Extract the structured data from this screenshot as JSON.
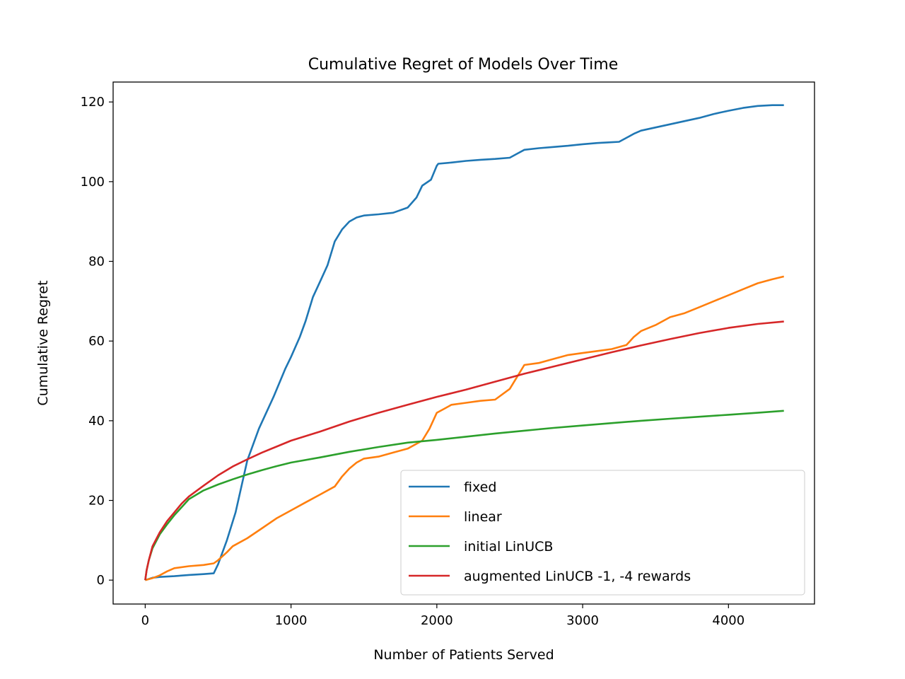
{
  "chart_data": {
    "type": "line",
    "title": "Cumulative Regret of Models Over Time",
    "xlabel": "Number of Patients Served",
    "ylabel": "Cumulative Regret",
    "xlim": [
      -220,
      4590
    ],
    "ylim": [
      -6,
      125
    ],
    "xticks": [
      0,
      1000,
      2000,
      3000,
      4000
    ],
    "yticks": [
      0,
      20,
      40,
      60,
      80,
      100,
      120
    ],
    "grid": false,
    "legend": "lower-right",
    "series": [
      {
        "name": "fixed",
        "color": "#1f77b4",
        "x": [
          0,
          50,
          100,
          200,
          300,
          400,
          470,
          500,
          560,
          620,
          700,
          780,
          880,
          960,
          1000,
          1060,
          1100,
          1150,
          1200,
          1250,
          1300,
          1350,
          1400,
          1450,
          1500,
          1600,
          1700,
          1800,
          1860,
          1900,
          1960,
          2000,
          2010,
          2100,
          2200,
          2300,
          2400,
          2500,
          2550,
          2600,
          2700,
          2800,
          2900,
          3000,
          3100,
          3200,
          3250,
          3300,
          3350,
          3400,
          3500,
          3600,
          3700,
          3800,
          3900,
          4000,
          4100,
          4200,
          4300,
          4380
        ],
        "y": [
          0,
          0.6,
          0.8,
          1.0,
          1.3,
          1.5,
          1.7,
          4,
          10,
          17,
          30,
          38,
          46,
          53,
          56,
          61,
          65,
          71,
          75,
          79,
          85,
          88,
          90,
          91,
          91.5,
          91.8,
          92.2,
          93.5,
          96,
          99,
          100.5,
          104,
          104.5,
          104.8,
          105.2,
          105.5,
          105.7,
          106,
          107,
          108,
          108.4,
          108.7,
          109,
          109.4,
          109.7,
          109.9,
          110,
          111,
          112,
          112.8,
          113.6,
          114.4,
          115.2,
          116,
          117,
          117.8,
          118.5,
          119,
          119.2,
          119.2
        ]
      },
      {
        "name": "linear",
        "color": "#ff7f0e",
        "x": [
          0,
          50,
          100,
          150,
          200,
          300,
          400,
          470,
          500,
          560,
          600,
          700,
          800,
          900,
          1000,
          1100,
          1200,
          1300,
          1350,
          1400,
          1450,
          1500,
          1600,
          1700,
          1800,
          1900,
          1950,
          2000,
          2050,
          2100,
          2200,
          2300,
          2400,
          2500,
          2550,
          2600,
          2700,
          2800,
          2900,
          3000,
          3100,
          3200,
          3300,
          3350,
          3400,
          3500,
          3600,
          3700,
          3800,
          3900,
          4000,
          4100,
          4200,
          4300,
          4380
        ],
        "y": [
          0,
          0.5,
          1.2,
          2.2,
          3,
          3.5,
          3.8,
          4.2,
          5,
          7,
          8.5,
          10.5,
          13,
          15.5,
          17.5,
          19.5,
          21.5,
          23.5,
          26,
          28,
          29.5,
          30.5,
          31,
          32,
          33,
          35,
          38,
          42,
          43,
          44,
          44.5,
          45,
          45.3,
          48,
          51,
          54,
          54.5,
          55.5,
          56.5,
          57,
          57.5,
          58,
          59,
          61,
          62.5,
          64,
          66,
          67,
          68.5,
          70,
          71.5,
          73,
          74.5,
          75.5,
          76.2
        ]
      },
      {
        "name": "initial LinUCB",
        "color": "#2ca02c",
        "x": [
          0,
          10,
          25,
          50,
          100,
          150,
          200,
          250,
          300,
          400,
          500,
          600,
          700,
          800,
          900,
          1000,
          1200,
          1400,
          1600,
          1800,
          2000,
          2200,
          2400,
          2600,
          2800,
          3000,
          3200,
          3400,
          3600,
          3800,
          4000,
          4200,
          4380
        ],
        "y": [
          0,
          2.5,
          5,
          8,
          11.5,
          14,
          16.3,
          18.3,
          20.3,
          22.5,
          24,
          25.3,
          26.5,
          27.6,
          28.6,
          29.5,
          30.8,
          32.2,
          33.4,
          34.5,
          35.2,
          36,
          36.8,
          37.5,
          38.2,
          38.8,
          39.4,
          40,
          40.5,
          41,
          41.5,
          42,
          42.5
        ]
      },
      {
        "name": "augmented LinUCB -1, -4 rewards",
        "color": "#d62728",
        "x": [
          0,
          10,
          25,
          50,
          100,
          150,
          200,
          250,
          300,
          400,
          500,
          600,
          700,
          800,
          900,
          1000,
          1200,
          1400,
          1600,
          1800,
          2000,
          2200,
          2400,
          2600,
          2800,
          3000,
          3200,
          3400,
          3600,
          3800,
          4000,
          4200,
          4380
        ],
        "y": [
          0,
          2.5,
          5,
          8.5,
          12,
          14.8,
          17,
          19.2,
          21,
          23.7,
          26.3,
          28.5,
          30.3,
          32,
          33.5,
          35,
          37.3,
          39.8,
          42,
          44,
          46,
          47.8,
          49.8,
          51.8,
          53.6,
          55.4,
          57.2,
          58.9,
          60.5,
          62,
          63.3,
          64.3,
          64.9
        ]
      }
    ]
  }
}
